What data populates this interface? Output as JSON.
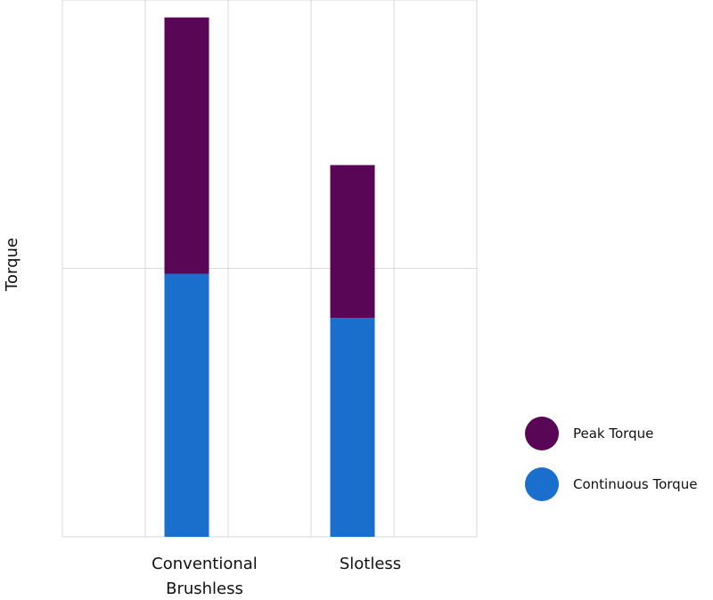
{
  "chart_data": {
    "type": "bar",
    "stacked": true,
    "title": "",
    "xlabel": "",
    "ylabel": "Torque",
    "categories": [
      [
        "Conventional",
        "Brushless"
      ],
      [
        "Slotless"
      ]
    ],
    "series": [
      {
        "name": "Continuous Torque",
        "color": "#1a6fcc",
        "values": [
          1.96,
          1.63
        ]
      },
      {
        "name": "Peak Torque",
        "color": "#5a0657",
        "values": [
          1.91,
          1.14
        ]
      }
    ],
    "ylim": [
      0,
      4
    ],
    "y_gridlines": [
      2
    ],
    "x_grid_divisions": 5,
    "grid": true,
    "legend": {
      "placement": "right",
      "marker": "circle"
    },
    "show_y_tick_labels": false
  }
}
